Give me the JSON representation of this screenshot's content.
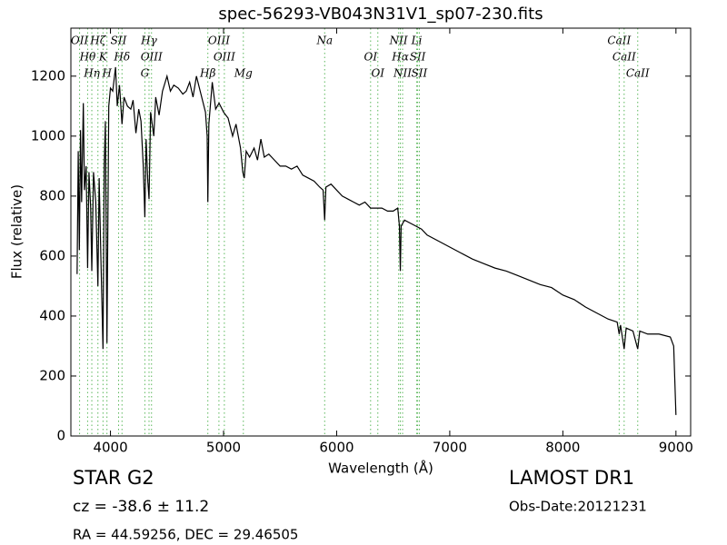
{
  "chart_data": {
    "type": "line",
    "title": "spec-56293-VB043N31V1_sp07-230.fits",
    "x_label": "Wavelength (Å)",
    "y_label": "Flux (relative)",
    "color": "#000000",
    "xlim": [
      3650,
      9130
    ],
    "ylim": [
      0,
      1360
    ],
    "xticks": [
      4000,
      5000,
      6000,
      7000,
      8000,
      9000
    ],
    "yticks": [
      0,
      200,
      400,
      600,
      800,
      1000,
      1200
    ],
    "x": [
      3705,
      3715,
      3725,
      3735,
      3745,
      3760,
      3770,
      3785,
      3798,
      3810,
      3825,
      3835,
      3850,
      3870,
      3889,
      3900,
      3915,
      3934,
      3945,
      3955,
      3969,
      3985,
      4000,
      4020,
      4045,
      4060,
      4080,
      4102,
      4120,
      4150,
      4180,
      4200,
      4225,
      4250,
      4270,
      4290,
      4304,
      4315,
      4330,
      4341,
      4355,
      4383,
      4400,
      4430,
      4460,
      4500,
      4530,
      4560,
      4600,
      4640,
      4670,
      4700,
      4730,
      4760,
      4800,
      4840,
      4855,
      4861,
      4870,
      4900,
      4930,
      4960,
      5000,
      5040,
      5080,
      5110,
      5150,
      5170,
      5183,
      5200,
      5230,
      5270,
      5300,
      5330,
      5360,
      5400,
      5450,
      5500,
      5550,
      5600,
      5650,
      5700,
      5750,
      5800,
      5850,
      5880,
      5894,
      5905,
      5950,
      6000,
      6050,
      6100,
      6150,
      6200,
      6250,
      6300,
      6350,
      6400,
      6450,
      6500,
      6540,
      6555,
      6563,
      6570,
      6600,
      6650,
      6700,
      6750,
      6800,
      6900,
      7000,
      7100,
      7200,
      7300,
      7400,
      7500,
      7600,
      7700,
      7800,
      7900,
      8000,
      8100,
      8200,
      8300,
      8400,
      8480,
      8498,
      8510,
      8542,
      8560,
      8620,
      8662,
      8680,
      8750,
      8850,
      8950,
      8980,
      9000
    ],
    "values": [
      540,
      950,
      620,
      1020,
      780,
      1110,
      820,
      900,
      560,
      880,
      760,
      550,
      880,
      780,
      500,
      860,
      600,
      290,
      900,
      1050,
      310,
      1100,
      1160,
      1150,
      1230,
      1100,
      1170,
      1040,
      1130,
      1100,
      1090,
      1120,
      1010,
      1090,
      1050,
      900,
      730,
      990,
      850,
      790,
      1080,
      1000,
      1130,
      1070,
      1150,
      1200,
      1150,
      1170,
      1160,
      1140,
      1150,
      1180,
      1130,
      1200,
      1140,
      1080,
      1000,
      780,
      1040,
      1180,
      1090,
      1110,
      1080,
      1060,
      1000,
      1040,
      960,
      880,
      860,
      950,
      930,
      960,
      920,
      990,
      930,
      940,
      920,
      900,
      900,
      890,
      900,
      870,
      860,
      850,
      830,
      820,
      720,
      830,
      840,
      820,
      800,
      790,
      780,
      770,
      780,
      760,
      760,
      760,
      750,
      750,
      760,
      700,
      550,
      700,
      720,
      710,
      700,
      690,
      670,
      650,
      630,
      610,
      590,
      575,
      560,
      550,
      535,
      520,
      505,
      495,
      470,
      455,
      430,
      410,
      390,
      380,
      340,
      370,
      290,
      360,
      350,
      290,
      350,
      340,
      340,
      330,
      300,
      70
    ],
    "line_color": "#5cb85c",
    "spectral_lines": [
      {
        "name": "OII",
        "wavelength": 3727
      },
      {
        "name": "Hθ",
        "wavelength": 3798
      },
      {
        "name": "Hη",
        "wavelength": 3835
      },
      {
        "name": "Hζ",
        "wavelength": 3889
      },
      {
        "name": "K",
        "wavelength": 3934
      },
      {
        "name": "H",
        "wavelength": 3969
      },
      {
        "name": "SII",
        "wavelength": 4072
      },
      {
        "name": "Hδ",
        "wavelength": 4102
      },
      {
        "name": "G",
        "wavelength": 4304
      },
      {
        "name": "Hγ",
        "wavelength": 4341
      },
      {
        "name": "OIII",
        "wavelength": 4363
      },
      {
        "name": "Hβ",
        "wavelength": 4861
      },
      {
        "name": "OIII",
        "wavelength": 4959
      },
      {
        "name": "OIII",
        "wavelength": 5007
      },
      {
        "name": "Mg",
        "wavelength": 5175
      },
      {
        "name": "Na",
        "wavelength": 5894
      },
      {
        "name": "OI",
        "wavelength": 6300
      },
      {
        "name": "OI",
        "wavelength": 6364
      },
      {
        "name": "NII",
        "wavelength": 6548
      },
      {
        "name": "Hα",
        "wavelength": 6563
      },
      {
        "name": "NII",
        "wavelength": 6583
      },
      {
        "name": "Li",
        "wavelength": 6708
      },
      {
        "name": "SII",
        "wavelength": 6716
      },
      {
        "name": "SII",
        "wavelength": 6731
      },
      {
        "name": "CaII",
        "wavelength": 8498
      },
      {
        "name": "CaII",
        "wavelength": 8542
      },
      {
        "name": "CaII",
        "wavelength": 8662
      }
    ]
  },
  "footer": {
    "class": "STAR",
    "subclass": "G2",
    "redshift": "cz = -38.6 ± 11.2",
    "coords": "RA = 44.59256, DEC = 29.46505",
    "survey": "LAMOST DR1",
    "obs_date": "Obs-Date:20121231"
  }
}
